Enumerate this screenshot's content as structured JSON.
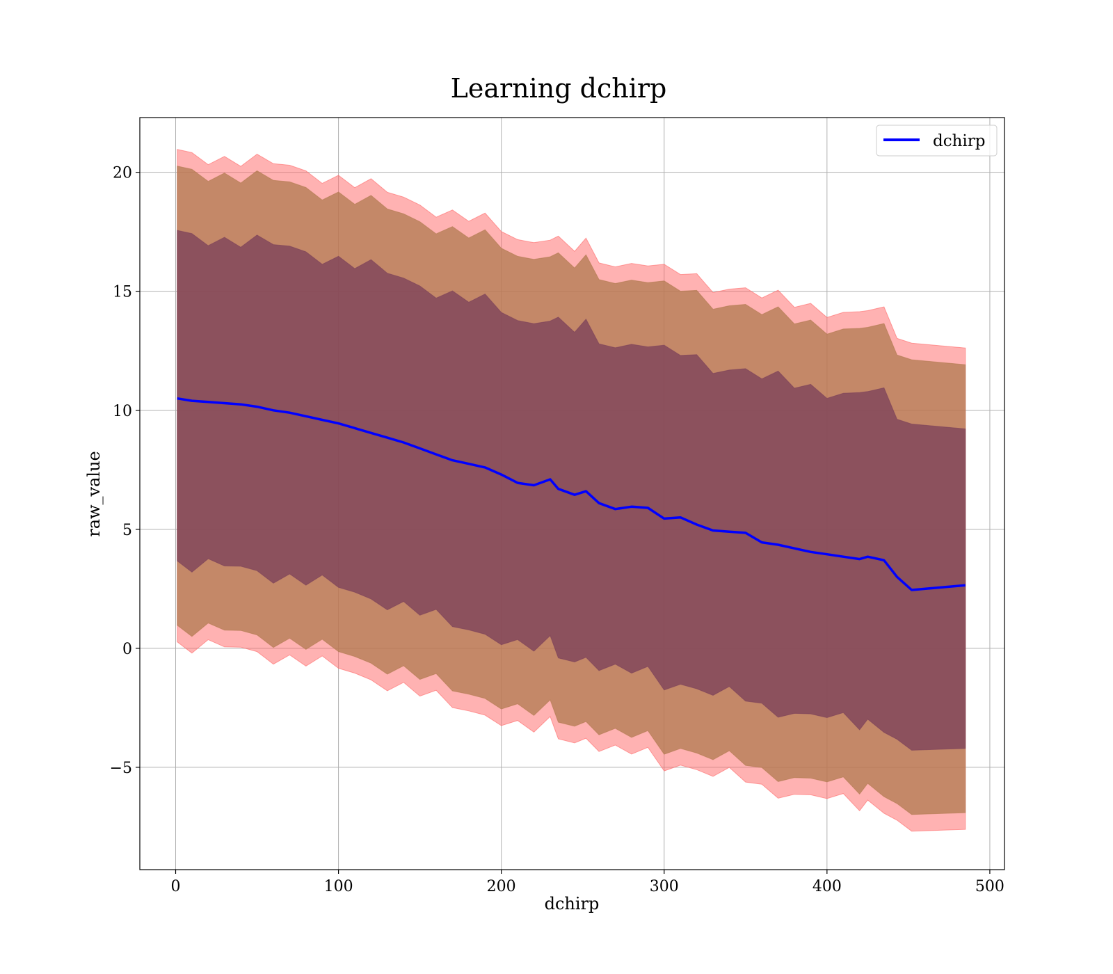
{
  "chart_data": {
    "type": "line",
    "title": "Learning dchirp",
    "xlabel": "dchirp",
    "ylabel": "raw_value",
    "xlim": [
      -22,
      509
    ],
    "ylim": [
      -9.3,
      22.3
    ],
    "xticks": [
      0,
      100,
      200,
      300,
      400,
      500
    ],
    "xtick_labels": [
      "0",
      "100",
      "200",
      "300",
      "400",
      "500"
    ],
    "yticks": [
      -5,
      0,
      5,
      10,
      15,
      20
    ],
    "ytick_labels": [
      "−5",
      "0",
      "5",
      "10",
      "15",
      "20"
    ],
    "grid": true,
    "legend": {
      "position": "top-right",
      "entries": [
        "dchirp"
      ]
    },
    "colors": {
      "line": "#0000ff",
      "band_outer": "#ff6666",
      "band_middle": "#b07a4f",
      "band_inner": "#7a3f5a"
    },
    "series": [
      {
        "name": "dchirp",
        "x": [
          1,
          10,
          20,
          30,
          40,
          50,
          60,
          70,
          80,
          90,
          100,
          110,
          120,
          130,
          140,
          150,
          160,
          170,
          180,
          190,
          200,
          210,
          220,
          230,
          235,
          245,
          252,
          260,
          270,
          280,
          290,
          300,
          310,
          320,
          330,
          340,
          350,
          360,
          370,
          380,
          390,
          400,
          410,
          420,
          425,
          435,
          443,
          452,
          485
        ],
        "y": [
          10.5,
          10.4,
          10.35,
          10.3,
          10.25,
          10.15,
          10.0,
          9.9,
          9.75,
          9.6,
          9.45,
          9.25,
          9.05,
          8.85,
          8.65,
          8.4,
          8.15,
          7.9,
          7.75,
          7.6,
          7.3,
          6.95,
          6.85,
          7.1,
          6.7,
          6.45,
          6.6,
          6.1,
          5.85,
          5.95,
          5.9,
          5.45,
          5.5,
          5.2,
          4.95,
          4.9,
          4.85,
          4.45,
          4.35,
          4.2,
          4.05,
          3.95,
          3.85,
          3.75,
          3.85,
          3.7,
          3.0,
          2.45,
          2.65
        ],
        "bands": [
          {
            "level": "outer",
            "lower_offset": -10.3,
            "upper_offset": 10.3
          },
          {
            "level": "middle",
            "lower_offset": -9.6,
            "upper_offset": 9.6
          },
          {
            "level": "inner",
            "lower_offset": -6.9,
            "upper_offset": 6.9
          }
        ]
      }
    ]
  }
}
